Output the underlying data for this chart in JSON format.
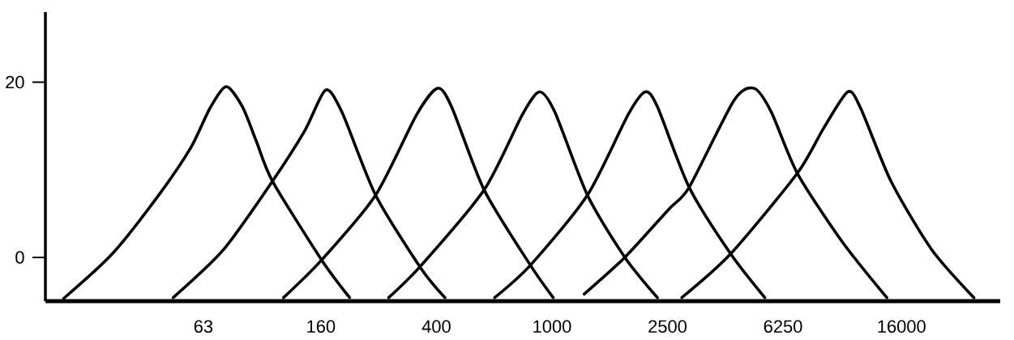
{
  "chart_data": {
    "type": "line",
    "log": "x",
    "xlim": [
      18,
      35000
    ],
    "ylim": [
      -5,
      28
    ],
    "xticks": [
      63,
      160,
      400,
      1000,
      2500,
      6250,
      16000
    ],
    "yticks": [
      0,
      20
    ],
    "line_style": "solid",
    "series": [
      {
        "color": "#000000",
        "x": [
          20.8,
          30.6,
          44.2,
          57.2,
          66.3,
          75.5,
          85.9,
          95.8,
          109,
          161,
          201
        ],
        "values": [
          -4.7,
          0.4,
          7.1,
          12.6,
          17.0,
          19.5,
          17.2,
          13.3,
          8.7,
          -0.3,
          -4.6
        ]
      },
      {
        "color": "#000000",
        "x": [
          49.6,
          74,
          109,
          141,
          166,
          189,
          247,
          353,
          428
        ],
        "values": [
          -4.6,
          0.9,
          8.7,
          14.5,
          19.1,
          16.6,
          7.1,
          -1.2,
          -4.6
        ]
      },
      {
        "color": "#000000",
        "x": [
          119,
          161,
          247,
          342,
          404,
          451,
          584,
          843,
          1010
        ],
        "values": [
          -4.6,
          -0.3,
          7.1,
          16.3,
          19.3,
          17.2,
          7.7,
          -0.9,
          -4.6
        ]
      },
      {
        "color": "#000000",
        "x": [
          274,
          355,
          584,
          791,
          905,
          1023,
          1325,
          1783,
          2308
        ],
        "values": [
          -4.6,
          -0.9,
          7.7,
          16.3,
          18.9,
          16.6,
          7.1,
          0,
          -4.6
        ]
      },
      {
        "color": "#000000",
        "x": [
          635,
          843,
          1325,
          1830,
          2096,
          2308,
          2969,
          4126,
          5409
        ],
        "values": [
          -4.6,
          -0.9,
          7.1,
          16.3,
          18.9,
          17.2,
          8.0,
          0.4,
          -4.6
        ]
      },
      {
        "color": "#000000",
        "x": [
          1291,
          1783,
          2527,
          2969,
          4233,
          4974,
          5695,
          7002,
          9986,
          14240
        ],
        "values": [
          -4.2,
          0,
          5.5,
          8.0,
          17.9,
          19.3,
          16.6,
          9.6,
          1.8,
          -4.6
        ]
      },
      {
        "color": "#000000",
        "x": [
          2801,
          4126,
          7002,
          8610,
          10450,
          11580,
          14710,
          20310,
          28410
        ],
        "values": [
          -4.6,
          0.4,
          9.6,
          14.7,
          18.9,
          17.0,
          8.7,
          0.9,
          -4.6
        ]
      }
    ]
  }
}
